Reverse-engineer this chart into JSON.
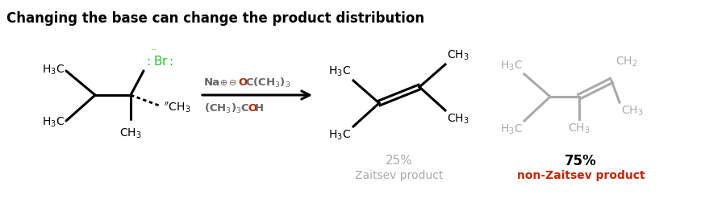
{
  "title": "Changing the base can change the product distribution",
  "title_fontsize": 12,
  "title_fontweight": "bold",
  "bg_color": "#ffffff",
  "colors": {
    "black": "#000000",
    "green": "#22cc22",
    "red": "#cc2200",
    "gray": "#aaaaaa",
    "dark_gray": "#666666"
  },
  "zaitsev_pct": "25%",
  "zaitsev_label": "Zaitsev product",
  "nonzaitsev_pct": "75%",
  "nonzaitsev_label": "non-Zaitsev product"
}
